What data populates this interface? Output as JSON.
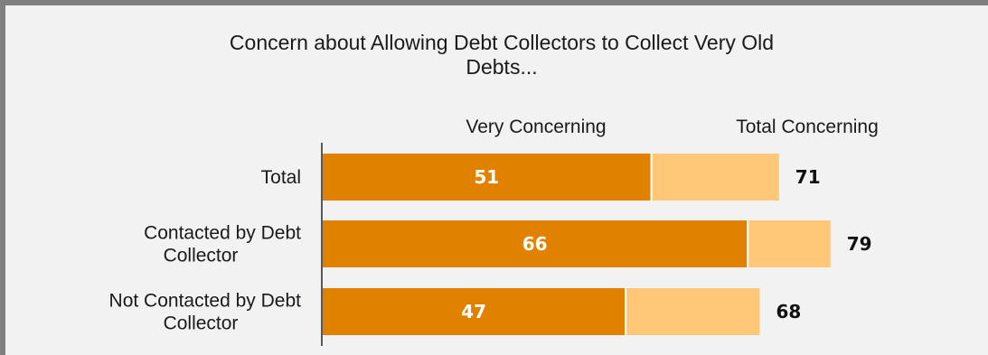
{
  "chart_data": {
    "type": "bar",
    "orientation": "horizontal",
    "stacked_overlay": true,
    "title_lines": [
      "Concern about Allowing Debt Collectors to Collect Very Old",
      "Debts..."
    ],
    "categories": [
      {
        "lines": [
          "Total"
        ]
      },
      {
        "lines": [
          "Contacted by Debt",
          "Collector"
        ]
      },
      {
        "lines": [
          "Not Contacted by Debt",
          "Collector"
        ]
      }
    ],
    "series": [
      {
        "name": "Very Concerning",
        "values": [
          51,
          66,
          47
        ],
        "color": "#e08100"
      },
      {
        "name": "Total Concerning",
        "values": [
          71,
          79,
          68
        ],
        "color": "#ffc778"
      }
    ],
    "xlim": [
      0,
      100
    ],
    "grid": false,
    "legend_position": "top"
  }
}
